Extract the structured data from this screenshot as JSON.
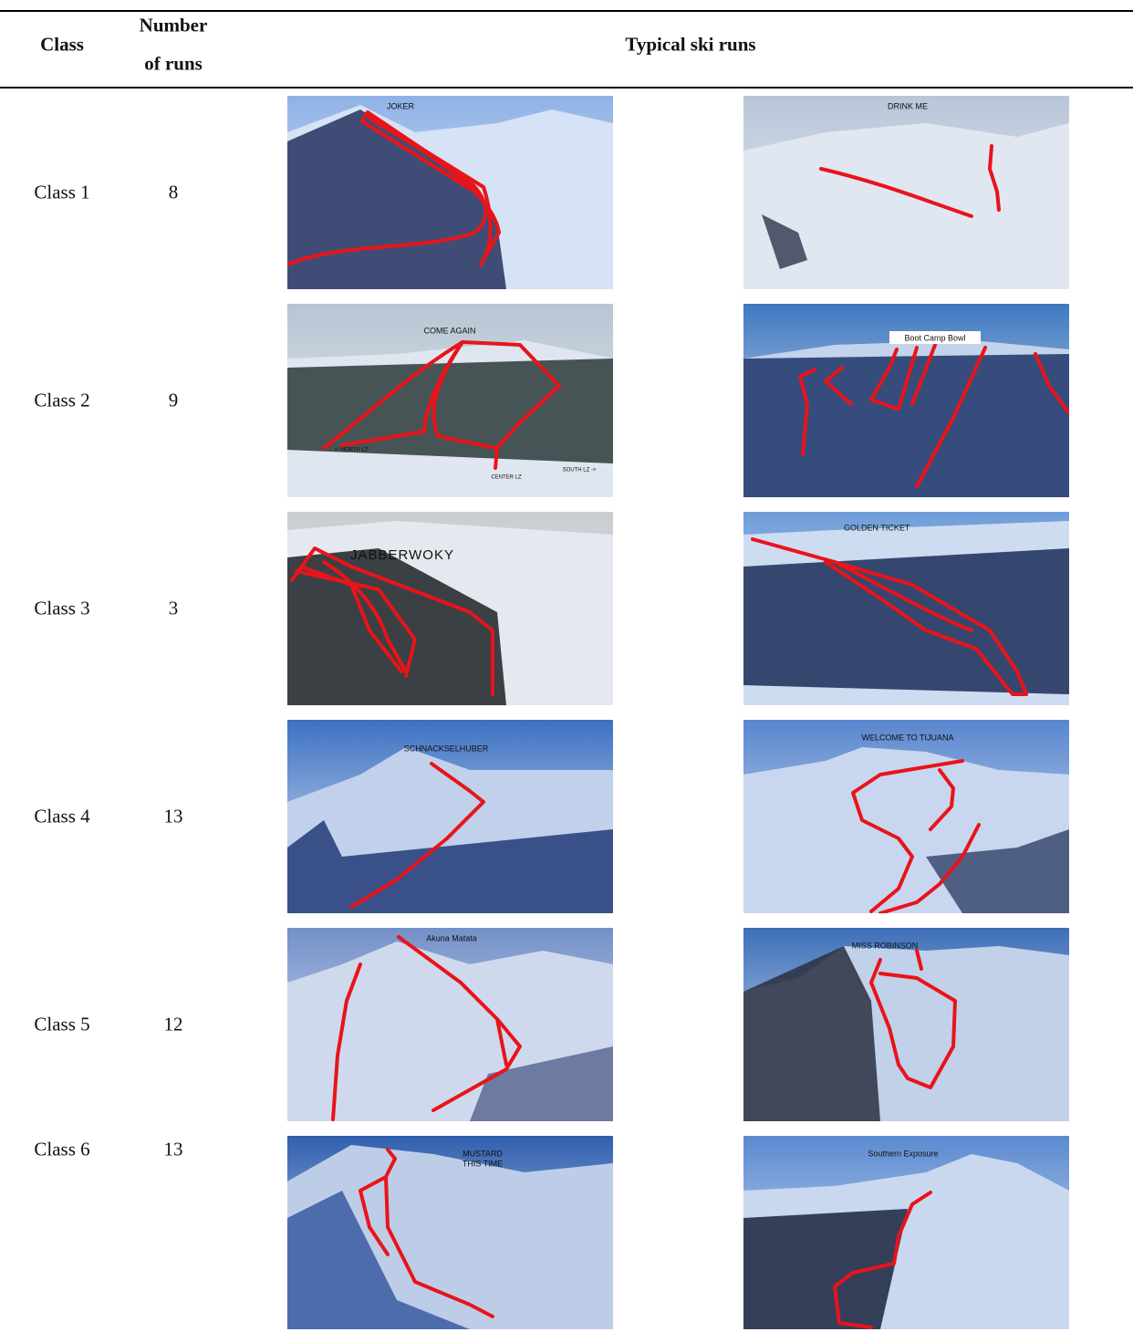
{
  "header": {
    "class": "Class",
    "number": [
      "Number",
      "of runs"
    ],
    "runs": "Typical ski runs"
  },
  "rows": [
    {
      "class": "Class 1",
      "number": 8,
      "photos": [
        {
          "labels": [
            "JOKER"
          ]
        },
        {
          "labels": [
            "DRINK ME"
          ]
        }
      ]
    },
    {
      "class": "Class 2",
      "number": 9,
      "photos": [
        {
          "labels": [
            "COME AGAIN",
            "<- NORTH LZ",
            "CENTER LZ",
            "SOUTH LZ ->"
          ]
        },
        {
          "labels": [
            "Boot Camp Bowl"
          ]
        }
      ]
    },
    {
      "class": "Class 3",
      "number": 3,
      "photos": [
        {
          "labels": [
            "JABBERWOKY"
          ]
        },
        {
          "labels": [
            "GOLDEN TICKET"
          ]
        }
      ]
    },
    {
      "class": "Class 4",
      "number": 13,
      "photos": [
        {
          "labels": [
            "SCHNACKSELHUBER"
          ]
        },
        {
          "labels": [
            "WELCOME TO TIJUANA"
          ]
        }
      ]
    },
    {
      "class": "Class 5",
      "number": 12,
      "photos": [
        {
          "labels": [
            "Akuna Matata"
          ]
        },
        {
          "labels": [
            "MISS ROBINSON"
          ]
        }
      ]
    },
    {
      "class": "Class 6",
      "number": 13,
      "photos": [
        {
          "labels": [
            "MUSTARD",
            "THIS TIME"
          ]
        },
        {
          "labels": [
            "Southern Exposure"
          ]
        }
      ]
    }
  ]
}
